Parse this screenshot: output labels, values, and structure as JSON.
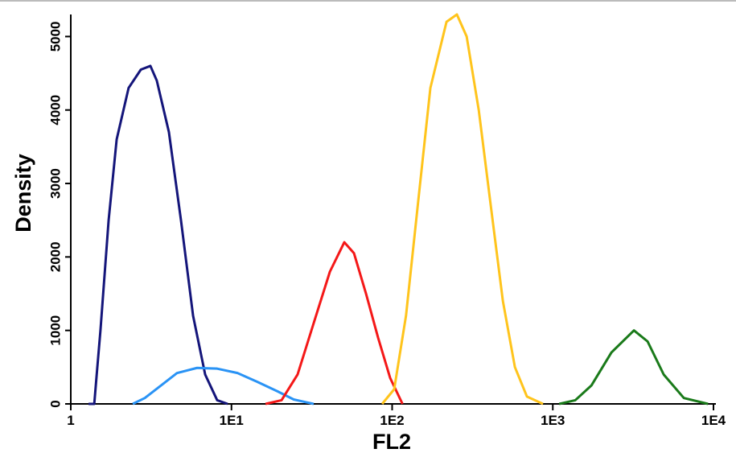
{
  "chart_data": {
    "type": "line",
    "x_label": "FL2",
    "y_label": "Density",
    "x_log": true,
    "xlim": [
      1,
      10000
    ],
    "ylim": [
      0,
      5300
    ],
    "xticks": [
      1,
      {
        "value": 10,
        "label": "1E1"
      },
      {
        "value": 100,
        "label": "1E2"
      },
      {
        "value": 1000,
        "label": "1E3"
      },
      {
        "value": 10000,
        "label": "1E4"
      }
    ],
    "yticks": [
      0,
      1000,
      2000,
      3000,
      4000,
      5000
    ],
    "series": [
      {
        "color": "#14157a",
        "x": [
          1.29,
          1.4,
          1.45,
          1.53,
          1.72,
          1.93,
          2.29,
          2.73,
          3.13,
          3.43,
          4.08,
          4.85,
          5.77,
          6.86,
          8.15,
          9.47
        ],
        "values": [
          0,
          0,
          400,
          1000,
          2500,
          3600,
          4300,
          4550,
          4600,
          4400,
          3700,
          2500,
          1200,
          400,
          50,
          0
        ]
      },
      {
        "color": "#2a93f5",
        "x": [
          2.43,
          2.89,
          3.64,
          4.58,
          6.11,
          8.15,
          10.9,
          14.5,
          19.4,
          24.4,
          32.5
        ],
        "values": [
          0,
          80,
          250,
          420,
          490,
          480,
          420,
          300,
          170,
          60,
          0
        ]
      },
      {
        "color": "#f41818",
        "x": [
          16.3,
          20.5,
          25.8,
          32.5,
          41.0,
          50.4,
          57.9,
          68.8,
          81.8,
          97.3,
          116
        ],
        "values": [
          0,
          50,
          400,
          1100,
          1800,
          2200,
          2050,
          1500,
          900,
          350,
          0
        ]
      },
      {
        "color": "#ffc41c",
        "x": [
          86.7,
          103,
          122,
          146,
          173,
          218,
          253,
          291,
          346,
          411,
          489,
          581,
          690,
          869
        ],
        "values": [
          0,
          200,
          1200,
          2800,
          4300,
          5200,
          5300,
          5000,
          4000,
          2700,
          1400,
          500,
          100,
          0
        ]
      },
      {
        "color": "#1a7a1a",
        "x": [
          1096,
          1380,
          1738,
          2317,
          3200,
          3890,
          4900,
          6540,
          9250
        ],
        "values": [
          0,
          50,
          250,
          700,
          1000,
          850,
          400,
          80,
          0
        ]
      }
    ]
  }
}
